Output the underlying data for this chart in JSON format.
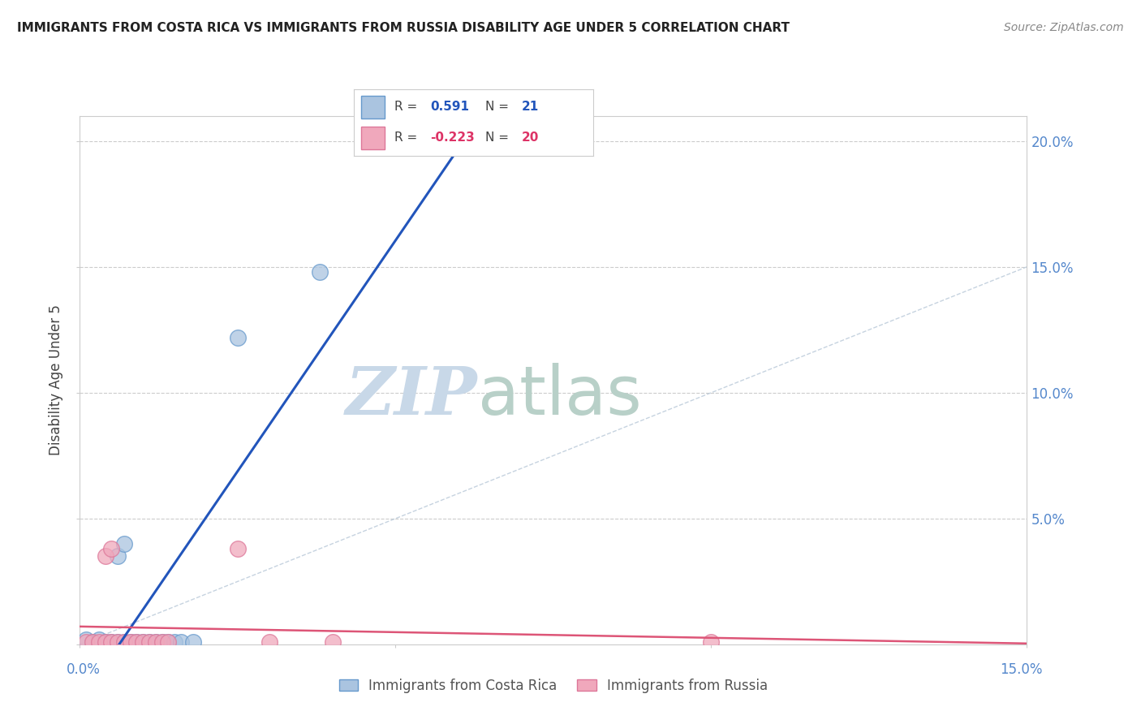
{
  "title": "IMMIGRANTS FROM COSTA RICA VS IMMIGRANTS FROM RUSSIA DISABILITY AGE UNDER 5 CORRELATION CHART",
  "source": "Source: ZipAtlas.com",
  "ylabel": "Disability Age Under 5",
  "y_tick_labels": [
    "",
    "5.0%",
    "10.0%",
    "15.0%",
    "20.0%"
  ],
  "y_tick_values": [
    0.0,
    0.05,
    0.1,
    0.15,
    0.2
  ],
  "xlim": [
    0.0,
    0.15
  ],
  "ylim": [
    0.0,
    0.21
  ],
  "costa_rica_points": [
    [
      0.001,
      0.002
    ],
    [
      0.002,
      0.001
    ],
    [
      0.003,
      0.002
    ],
    [
      0.004,
      0.001
    ],
    [
      0.005,
      0.001
    ],
    [
      0.006,
      0.001
    ],
    [
      0.007,
      0.001
    ],
    [
      0.008,
      0.001
    ],
    [
      0.009,
      0.001
    ],
    [
      0.01,
      0.001
    ],
    [
      0.011,
      0.001
    ],
    [
      0.012,
      0.001
    ],
    [
      0.013,
      0.001
    ],
    [
      0.014,
      0.001
    ],
    [
      0.006,
      0.035
    ],
    [
      0.007,
      0.04
    ],
    [
      0.015,
      0.001
    ],
    [
      0.016,
      0.001
    ],
    [
      0.018,
      0.001
    ],
    [
      0.025,
      0.122
    ],
    [
      0.038,
      0.148
    ]
  ],
  "russia_points": [
    [
      0.001,
      0.001
    ],
    [
      0.002,
      0.001
    ],
    [
      0.003,
      0.001
    ],
    [
      0.004,
      0.001
    ],
    [
      0.005,
      0.001
    ],
    [
      0.006,
      0.001
    ],
    [
      0.007,
      0.001
    ],
    [
      0.008,
      0.001
    ],
    [
      0.009,
      0.001
    ],
    [
      0.01,
      0.001
    ],
    [
      0.011,
      0.001
    ],
    [
      0.012,
      0.001
    ],
    [
      0.013,
      0.001
    ],
    [
      0.014,
      0.001
    ],
    [
      0.004,
      0.035
    ],
    [
      0.005,
      0.038
    ],
    [
      0.025,
      0.038
    ],
    [
      0.03,
      0.001
    ],
    [
      0.04,
      0.001
    ],
    [
      0.1,
      0.001
    ]
  ],
  "cr_R": 0.591,
  "cr_N": 21,
  "ru_R": -0.223,
  "ru_N": 20,
  "cr_line_color": "#2255bb",
  "ru_line_color": "#dd5577",
  "diag_line_color": "#b8c8d8",
  "watermark_zip": "ZIP",
  "watermark_atlas": "atlas",
  "watermark_color_zip": "#c8d8e8",
  "watermark_color_atlas": "#b8d0c8",
  "cr_scatter_face": "#aac4e0",
  "cr_scatter_edge": "#6699cc",
  "ru_scatter_face": "#f0a8bc",
  "ru_scatter_edge": "#dd7799"
}
